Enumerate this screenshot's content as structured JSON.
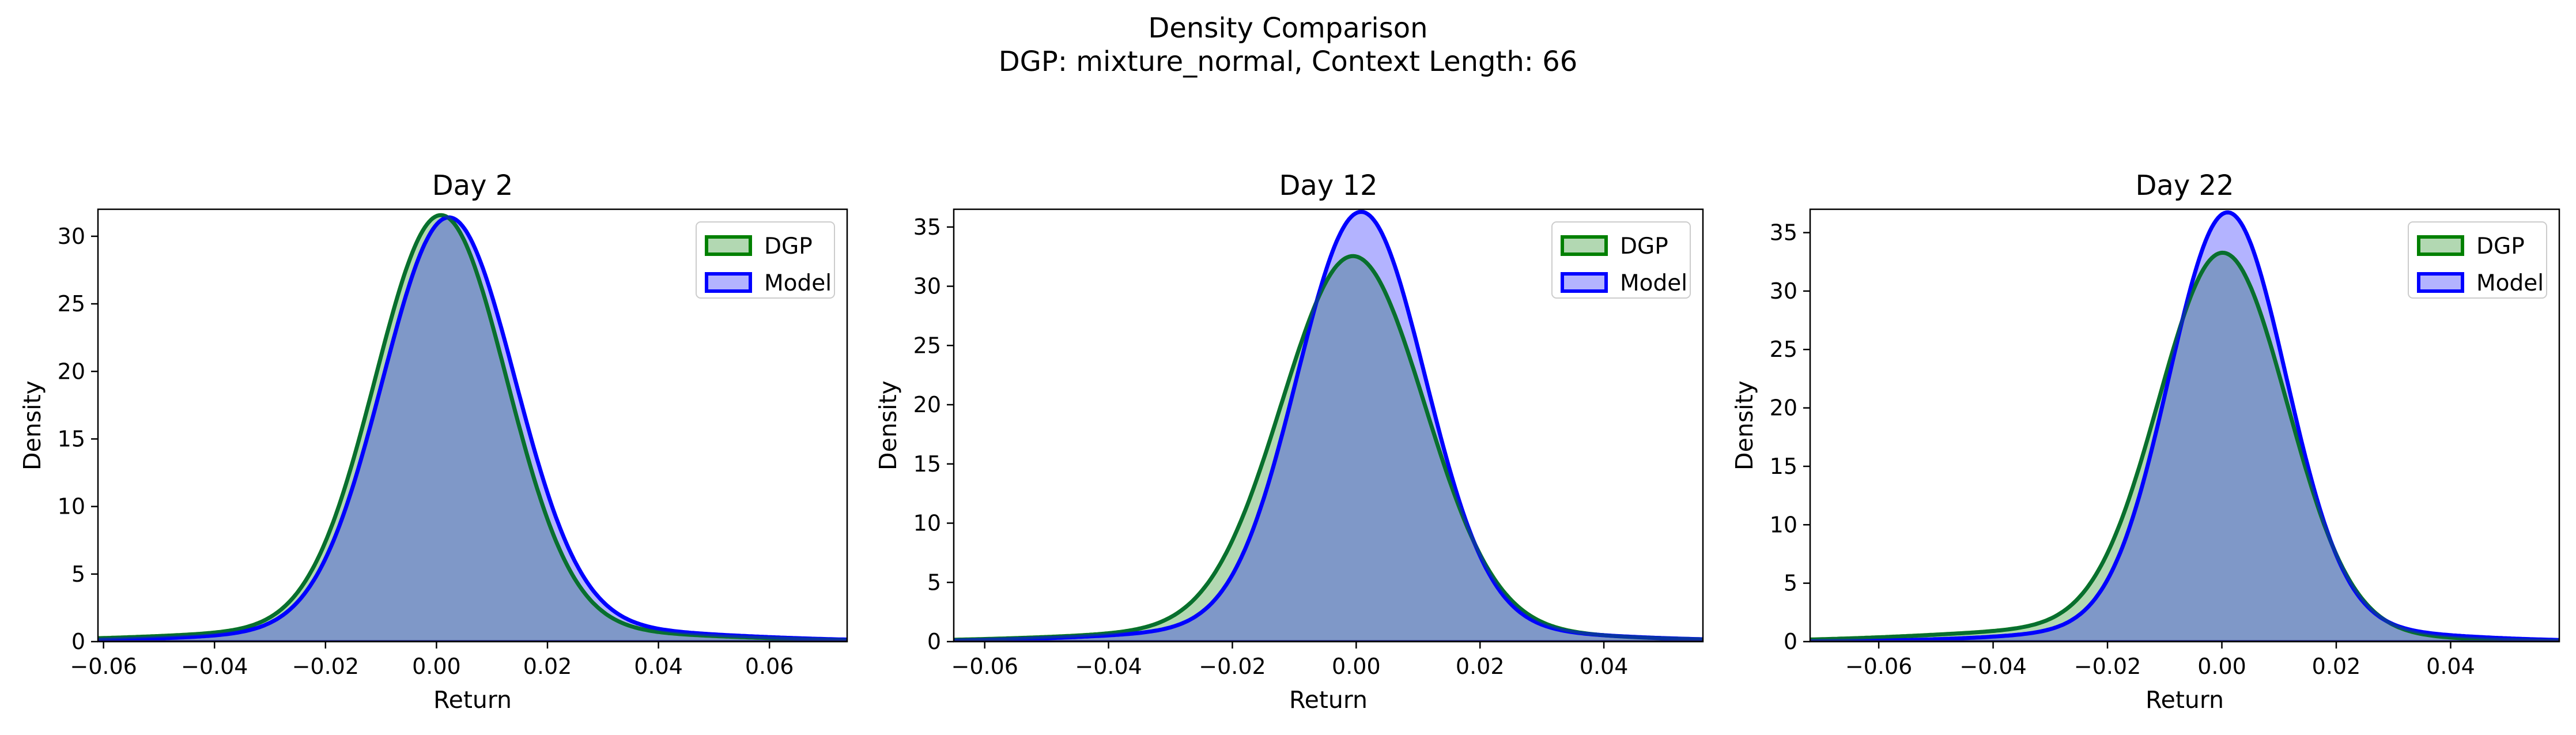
{
  "figure": {
    "title_line1": "Density Comparison",
    "title_line2": "DGP: mixture_normal, Context Length: 66"
  },
  "colors": {
    "dgp_line": "#008000",
    "dgp_fill": "#b2d8b2",
    "model_line": "#0000ff",
    "model_fill": "#b3b3ff",
    "overlap_fill": "#7f98c8"
  },
  "chart_data": [
    {
      "type": "area",
      "title": "Day 2",
      "xlabel": "Return",
      "ylabel": "Density",
      "xlim": [
        -0.061,
        0.074
      ],
      "ylim": [
        0,
        32
      ],
      "xticks": [
        -0.06,
        -0.04,
        -0.02,
        0.0,
        0.02,
        0.04,
        0.06
      ],
      "xtick_labels": [
        "−0.06",
        "−0.04",
        "−0.02",
        "0.00",
        "0.02",
        "0.04",
        "0.06"
      ],
      "yticks": [
        0,
        5,
        10,
        15,
        20,
        25,
        30
      ],
      "ytick_labels": [
        "0",
        "5",
        "10",
        "15",
        "20",
        "25",
        "30"
      ],
      "legend_position": "top-right",
      "series": [
        {
          "name": "DGP",
          "components": [
            {
              "w": 0.9,
              "mu": 0.0008,
              "sigma": 0.0118
            },
            {
              "w": 0.1,
              "mu": 0.0,
              "sigma": 0.035
            }
          ]
        },
        {
          "name": "Model",
          "components": [
            {
              "w": 0.9,
              "mu": 0.0022,
              "sigma": 0.0119
            },
            {
              "w": 0.1,
              "mu": 0.008,
              "sigma": 0.032
            }
          ]
        }
      ]
    },
    {
      "type": "area",
      "title": "Day 12",
      "xlabel": "Return",
      "ylabel": "Density",
      "xlim": [
        -0.065,
        0.056
      ],
      "ylim": [
        0,
        36.5
      ],
      "xticks": [
        -0.06,
        -0.04,
        -0.02,
        0.0,
        0.02,
        0.04
      ],
      "xtick_labels": [
        "−0.06",
        "−0.04",
        "−0.02",
        "0.00",
        "0.02",
        "0.04"
      ],
      "yticks": [
        0,
        5,
        10,
        15,
        20,
        25,
        30,
        35
      ],
      "ytick_labels": [
        "0",
        "5",
        "10",
        "15",
        "20",
        "25",
        "30",
        "35"
      ],
      "legend_position": "top-right",
      "series": [
        {
          "name": "DGP",
          "components": [
            {
              "w": 0.9,
              "mu": -0.0005,
              "sigma": 0.0115
            },
            {
              "w": 0.1,
              "mu": -0.003,
              "sigma": 0.03
            }
          ]
        },
        {
          "name": "Model",
          "components": [
            {
              "w": 0.9,
              "mu": 0.0008,
              "sigma": 0.0103
            },
            {
              "w": 0.1,
              "mu": 0.0,
              "sigma": 0.028
            }
          ]
        }
      ]
    },
    {
      "type": "area",
      "title": "Day 22",
      "xlabel": "Return",
      "ylabel": "Density",
      "xlim": [
        -0.072,
        0.059
      ],
      "ylim": [
        0,
        37
      ],
      "xticks": [
        -0.06,
        -0.04,
        -0.02,
        0.0,
        0.02,
        0.04
      ],
      "xtick_labels": [
        "−0.06",
        "−0.04",
        "−0.02",
        "0.00",
        "0.02",
        "0.04"
      ],
      "yticks": [
        0,
        5,
        10,
        15,
        20,
        25,
        30,
        35
      ],
      "ytick_labels": [
        "0",
        "5",
        "10",
        "15",
        "20",
        "25",
        "30",
        "35"
      ],
      "legend_position": "top-right",
      "series": [
        {
          "name": "DGP",
          "components": [
            {
              "w": 0.9,
              "mu": 0.0002,
              "sigma": 0.0112
            },
            {
              "w": 0.1,
              "mu": -0.012,
              "sigma": 0.03
            }
          ]
        },
        {
          "name": "Model",
          "components": [
            {
              "w": 0.9,
              "mu": 0.001,
              "sigma": 0.0102
            },
            {
              "w": 0.1,
              "mu": 0.002,
              "sigma": 0.026
            }
          ]
        }
      ]
    }
  ]
}
